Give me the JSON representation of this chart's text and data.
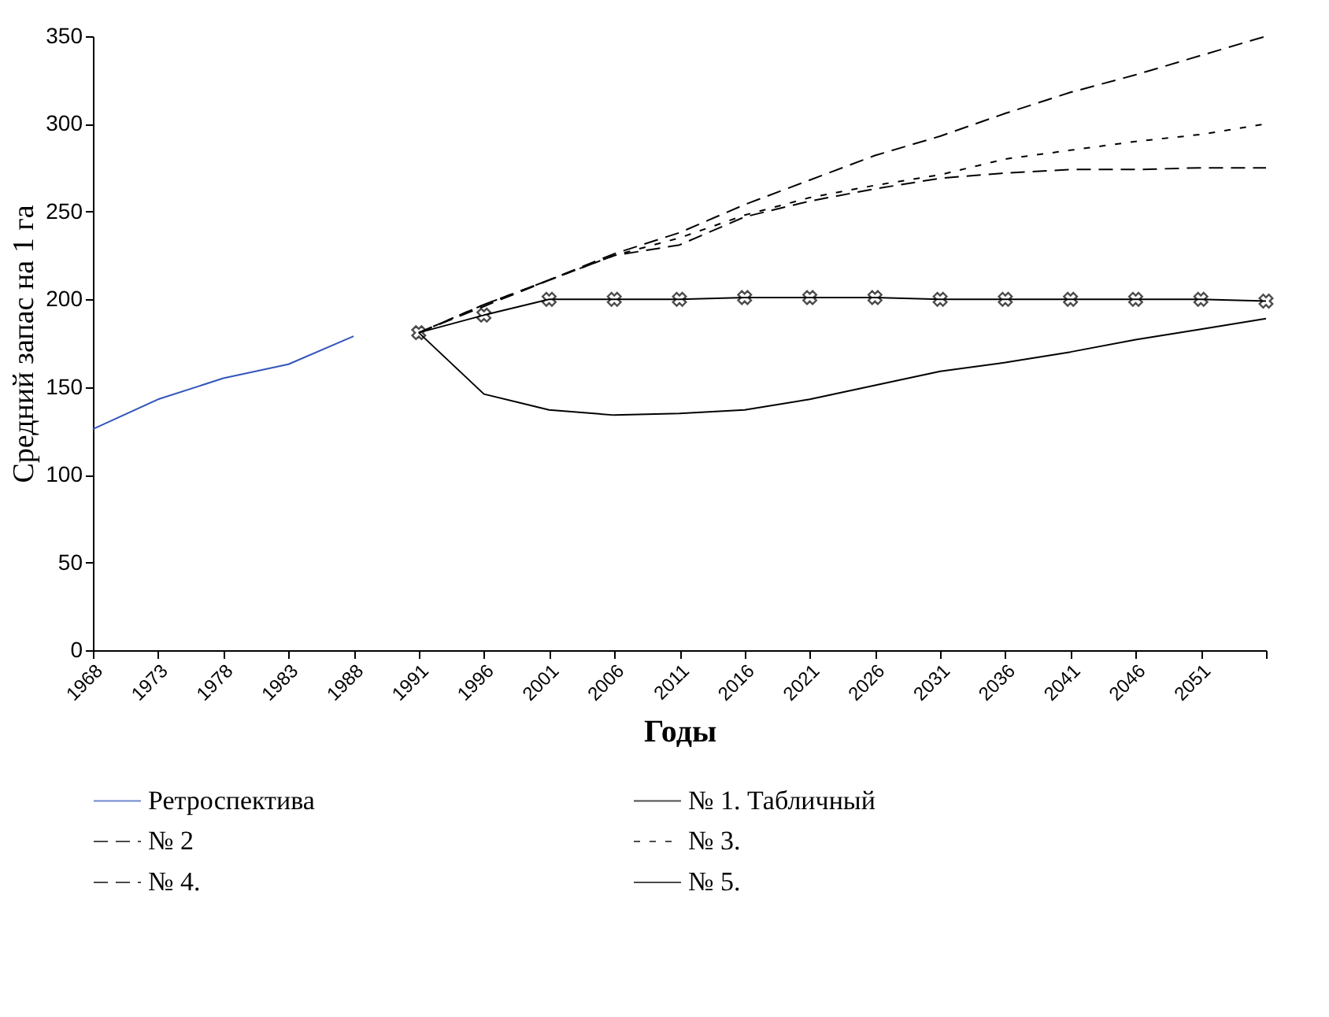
{
  "chart_data": {
    "type": "line",
    "xlabel": "Годы",
    "ylabel": "Средний запас на 1 га",
    "categories": [
      "1968",
      "1973",
      "1978",
      "1983",
      "1988",
      "1991",
      "1996",
      "2001",
      "2006",
      "2011",
      "2016",
      "2021",
      "2026",
      "2031",
      "2036",
      "2041",
      "2046",
      "2051",
      null
    ],
    "ylim": [
      0,
      350
    ],
    "yticks": [
      0,
      50,
      100,
      150,
      200,
      250,
      300,
      350
    ],
    "grid": false,
    "legend": "bottom",
    "series": [
      {
        "name": "Ретроспектива",
        "color": "#3355bb",
        "line_style": "solid",
        "values": [
          126,
          143,
          155,
          163,
          179,
          null,
          null,
          null,
          null,
          null,
          null,
          null,
          null,
          null,
          null,
          null,
          null,
          null,
          null
        ]
      },
      {
        "name": "№ 1. Табличный",
        "color": "#000000",
        "line_style": "solid",
        "values": [
          null,
          null,
          null,
          null,
          null,
          181,
          146,
          137,
          134,
          135,
          137,
          143,
          151,
          159,
          164,
          170,
          177,
          183,
          189
        ]
      },
      {
        "name": "№ 2",
        "color": "#000000",
        "line_style": "dashed",
        "values": [
          null,
          null,
          null,
          null,
          null,
          181,
          197,
          211,
          226,
          238,
          254,
          268,
          282,
          293,
          306,
          318,
          328,
          339,
          350
        ]
      },
      {
        "name": "№ 3.",
        "color": "#000000",
        "line_style": "dotted",
        "values": [
          null,
          null,
          null,
          null,
          null,
          181,
          197,
          211,
          225,
          235,
          248,
          258,
          265,
          271,
          280,
          285,
          290,
          294,
          300
        ]
      },
      {
        "name": "№ 4.",
        "color": "#000000",
        "line_style": "dashed",
        "values": [
          null,
          null,
          null,
          null,
          null,
          181,
          196,
          211,
          225,
          231,
          247,
          256,
          263,
          269,
          272,
          274,
          274,
          275,
          275
        ]
      },
      {
        "name": "№ 5.",
        "color": "#000000",
        "line_style": "solid",
        "marker": "cross",
        "values": [
          null,
          null,
          null,
          null,
          null,
          181,
          191,
          200,
          200,
          200,
          201,
          201,
          201,
          200,
          200,
          200,
          200,
          200,
          199
        ]
      }
    ]
  }
}
